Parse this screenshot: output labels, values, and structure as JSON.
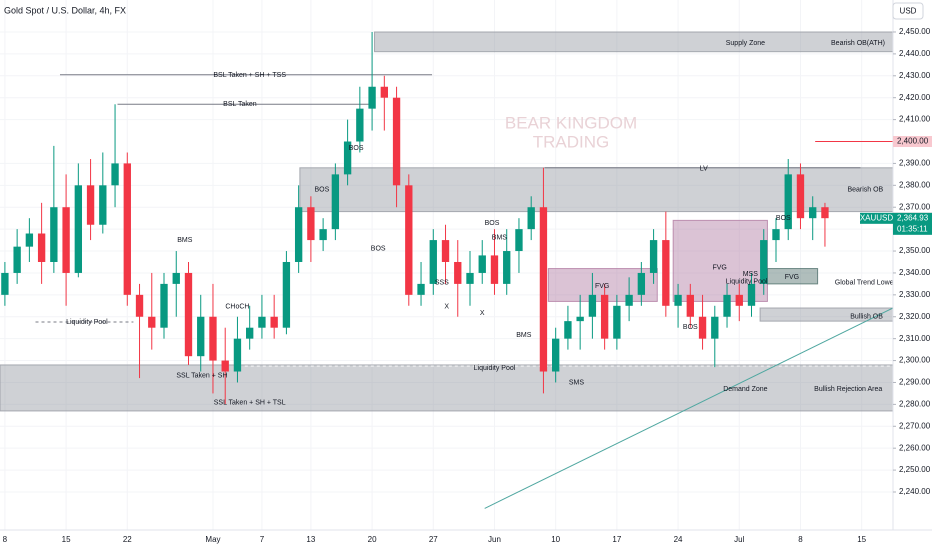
{
  "chart_data": {
    "type": "candlestick",
    "title": "Gold Spot / U.S. Dollar, 4h, FX",
    "currency": "USD",
    "watermark": [
      "BEAR KINGDOM",
      "TRADING"
    ],
    "up_color": "#089981",
    "down_color": "#f23645",
    "grid": true,
    "xlim": [
      -0.4,
      72.56
    ],
    "ylim": [
      2222.65,
      2464.6
    ],
    "xticks": [
      {
        "value": 0,
        "label": "8"
      },
      {
        "value": 5,
        "label": "15"
      },
      {
        "value": 10,
        "label": "22"
      },
      {
        "value": 17,
        "label": "May"
      },
      {
        "value": 21,
        "label": "7"
      },
      {
        "value": 25,
        "label": "13"
      },
      {
        "value": 30,
        "label": "20"
      },
      {
        "value": 35,
        "label": "27"
      },
      {
        "value": 40,
        "label": "Jun"
      },
      {
        "value": 45,
        "label": "10"
      },
      {
        "value": 50,
        "label": "17"
      },
      {
        "value": 55,
        "label": "24"
      },
      {
        "value": 60,
        "label": "Jul"
      },
      {
        "value": 65,
        "label": "8"
      },
      {
        "value": 70,
        "label": "15"
      }
    ],
    "yticks": [
      {
        "value": 2240,
        "label": "2,240.00"
      },
      {
        "value": 2250,
        "label": "2,250.00"
      },
      {
        "value": 2260,
        "label": "2,260.00"
      },
      {
        "value": 2270,
        "label": "2,270.00"
      },
      {
        "value": 2280,
        "label": "2,280.00"
      },
      {
        "value": 2290,
        "label": "2,290.00"
      },
      {
        "value": 2300,
        "label": "2,300.00"
      },
      {
        "value": 2310,
        "label": "2,310.00"
      },
      {
        "value": 2320,
        "label": "2,320.00"
      },
      {
        "value": 2330,
        "label": "2,330.00"
      },
      {
        "value": 2340,
        "label": "2,340.00"
      },
      {
        "value": 2350,
        "label": "2,350.00"
      },
      {
        "value": 2360,
        "label": "2,360.00"
      },
      {
        "value": 2370,
        "label": "2,370.00"
      },
      {
        "value": 2380,
        "label": "2,380.00"
      },
      {
        "value": 2390,
        "label": "2,390.00"
      },
      {
        "value": 2410,
        "label": "2,410.00"
      },
      {
        "value": 2420,
        "label": "2,420.00"
      },
      {
        "value": 2430,
        "label": "2,430.00"
      },
      {
        "value": 2440,
        "label": "2,440.00"
      },
      {
        "value": 2450,
        "label": "2,450.00"
      }
    ],
    "x": [
      0,
      1,
      2,
      3,
      4,
      5,
      6,
      7,
      8,
      9,
      10,
      11,
      12,
      13,
      14,
      15,
      16,
      17,
      18,
      19,
      20,
      21,
      22,
      23,
      24,
      25,
      26,
      27,
      28,
      29,
      30,
      31,
      32,
      33,
      34,
      35,
      36,
      37,
      38,
      39,
      40,
      41,
      42,
      43,
      44,
      45,
      46,
      47,
      48,
      49,
      50,
      51,
      52,
      53,
      54,
      55,
      56,
      57,
      58,
      59,
      60,
      61,
      62,
      63,
      64,
      65,
      66,
      67
    ],
    "open": [
      2330,
      2340,
      2352,
      2358,
      2345,
      2370,
      2340,
      2380,
      2362,
      2380,
      2390,
      2330,
      2320,
      2315,
      2335,
      2340,
      2302,
      2320,
      2300,
      2295,
      2310,
      2315,
      2320,
      2315,
      2345,
      2370,
      2355,
      2360,
      2385,
      2400,
      2415,
      2425,
      2420,
      2380,
      2330,
      2335,
      2355,
      2345,
      2335,
      2340,
      2348,
      2335,
      2350,
      2360,
      2370,
      2295,
      2310,
      2318,
      2320,
      2330,
      2310,
      2325,
      2330,
      2340,
      2355,
      2325,
      2330,
      2320,
      2310,
      2320,
      2330,
      2325,
      2335,
      2355,
      2360,
      2385,
      2365,
      2370
    ],
    "high": [
      2345,
      2360,
      2365,
      2372,
      2398,
      2385,
      2390,
      2392,
      2395,
      2417,
      2395,
      2335,
      2340,
      2340,
      2350,
      2345,
      2330,
      2335,
      2315,
      2320,
      2325,
      2330,
      2330,
      2350,
      2380,
      2375,
      2365,
      2390,
      2410,
      2425,
      2450,
      2430,
      2425,
      2385,
      2345,
      2360,
      2362,
      2355,
      2350,
      2355,
      2360,
      2360,
      2365,
      2375,
      2388,
      2315,
      2325,
      2330,
      2340,
      2335,
      2330,
      2338,
      2345,
      2360,
      2368,
      2335,
      2335,
      2330,
      2325,
      2335,
      2335,
      2340,
      2360,
      2365,
      2392,
      2390,
      2375,
      2372
    ],
    "low": [
      2325,
      2335,
      2345,
      2335,
      2340,
      2325,
      2338,
      2355,
      2358,
      2370,
      2325,
      2292,
      2305,
      2310,
      2320,
      2298,
      2295,
      2285,
      2280,
      2290,
      2305,
      2310,
      2310,
      2312,
      2340,
      2345,
      2350,
      2355,
      2380,
      2395,
      2405,
      2405,
      2370,
      2325,
      2325,
      2330,
      2335,
      2320,
      2325,
      2335,
      2330,
      2330,
      2340,
      2355,
      2285,
      2290,
      2305,
      2305,
      2310,
      2305,
      2305,
      2318,
      2325,
      2335,
      2320,
      2315,
      2315,
      2305,
      2297,
      2315,
      2318,
      2320,
      2330,
      2345,
      2355,
      2360,
      2355,
      2352
    ],
    "close": [
      2340,
      2352,
      2358,
      2345,
      2370,
      2340,
      2380,
      2362,
      2380,
      2390,
      2330,
      2320,
      2315,
      2335,
      2340,
      2302,
      2320,
      2300,
      2295,
      2310,
      2315,
      2320,
      2315,
      2345,
      2370,
      2355,
      2360,
      2385,
      2400,
      2415,
      2425,
      2420,
      2380,
      2330,
      2335,
      2355,
      2345,
      2335,
      2340,
      2348,
      2335,
      2350,
      2360,
      2370,
      2295,
      2310,
      2318,
      2320,
      2330,
      2310,
      2325,
      2330,
      2340,
      2355,
      2325,
      2330,
      2320,
      2310,
      2320,
      2330,
      2325,
      2335,
      2355,
      2360,
      2385,
      2365,
      2370,
      2365
    ],
    "zones": [
      {
        "top": 2450,
        "bottom": 2441,
        "x0": 30.2,
        "x1": 72.56,
        "color": "#9598a1"
      },
      {
        "top": 2388,
        "bottom": 2368,
        "x0": 24.1,
        "x1": 72.56,
        "color": "#9598a1"
      },
      {
        "top": 2298,
        "bottom": 2277,
        "x0": -0.4,
        "x1": 72.56,
        "color": "#9598a1"
      },
      {
        "top": 2342,
        "bottom": 2327,
        "x0": 44.4,
        "x1": 53.3,
        "color": "#b07aa1"
      },
      {
        "top": 2364,
        "bottom": 2327,
        "x0": 54.6,
        "x1": 62.3,
        "color": "#b07aa1"
      },
      {
        "top": 2342,
        "bottom": 2335,
        "x0": 62.3,
        "x1": 66.4,
        "color": "#4f6f6b"
      },
      {
        "top": 2324,
        "bottom": 2318,
        "x0": 61.7,
        "x1": 72.56,
        "color": "#9598a1"
      }
    ],
    "levels": [
      {
        "value": 2430.5,
        "x0": 4.5,
        "x1": 34.9,
        "color": "#787b86",
        "dashed": false
      },
      {
        "value": 2417,
        "x0": 9.2,
        "x1": 29.8,
        "color": "#787b86",
        "dashed": false
      },
      {
        "value": 2317.6,
        "x0": 2.5,
        "x1": 10.5,
        "color": "#787b86",
        "dashed": true
      },
      {
        "value": 2297.5,
        "x0": 19.6,
        "x1": 72.56,
        "color": "#ffffff",
        "dashed": true
      },
      {
        "value": 2388,
        "x0": 44.1,
        "x1": 69.9,
        "color": "#787b86",
        "dashed": false
      },
      {
        "value": 2400,
        "x0": 66.2,
        "x1": 72.56,
        "color": "#f23645",
        "dashed": false
      }
    ],
    "trend_line": {
      "x": [
        39.2,
        72.56
      ],
      "values": [
        2232.5,
        2324
      ],
      "color": "#4fa7a0"
    },
    "annotations": [
      {
        "text": "Supply Zone",
        "x": 60.5,
        "y": 2445
      },
      {
        "text": "Bearish OB(ATH)",
        "x": 69.7,
        "y": 2445
      },
      {
        "text": "BSL Taken + SH + TSS",
        "x": 20,
        "y": 2430.4
      },
      {
        "text": "BSL Taken",
        "x": 19.2,
        "y": 2417
      },
      {
        "text": "BOS",
        "x": 28.7,
        "y": 2397
      },
      {
        "text": "BMS",
        "x": 14.7,
        "y": 2355
      },
      {
        "text": "BOS",
        "x": 25.9,
        "y": 2378
      },
      {
        "text": "BOS",
        "x": 30.5,
        "y": 2351
      },
      {
        "text": "CHoCH",
        "x": 19,
        "y": 2324.5
      },
      {
        "text": "Liquidity Pool",
        "x": 6.7,
        "y": 2317.6
      },
      {
        "text": "SSL Taken + SH",
        "x": 16.1,
        "y": 2293
      },
      {
        "text": "SSL Taken + SH + TSL",
        "x": 20,
        "y": 2280.7
      },
      {
        "text": "BOS",
        "x": 39.8,
        "y": 2362.8
      },
      {
        "text": "BMS",
        "x": 40.4,
        "y": 2356
      },
      {
        "text": "SSS",
        "x": 35.7,
        "y": 2335.5
      },
      {
        "text": "X",
        "x": 36.1,
        "y": 2324.5
      },
      {
        "text": "X",
        "x": 39,
        "y": 2321.7
      },
      {
        "text": "BMS",
        "x": 42.4,
        "y": 2311.7
      },
      {
        "text": "LV",
        "x": 57.1,
        "y": 2387.5
      },
      {
        "text": "FVG",
        "x": 48.8,
        "y": 2334
      },
      {
        "text": "FVG",
        "x": 58.4,
        "y": 2342.3
      },
      {
        "text": "FVG",
        "x": 64.3,
        "y": 2338
      },
      {
        "text": "MSS",
        "x": 60.9,
        "y": 2339.5
      },
      {
        "text": "Liquidity Pool",
        "x": 60.6,
        "y": 2336
      },
      {
        "text": "Liquidity Pool",
        "x": 40,
        "y": 2296.6
      },
      {
        "text": "SMS",
        "x": 46.7,
        "y": 2290
      },
      {
        "text": "BOS",
        "x": 56,
        "y": 2315.3
      },
      {
        "text": "BOS",
        "x": 63.6,
        "y": 2365
      },
      {
        "text": "Bearish OB",
        "x": 70.3,
        "y": 2378
      },
      {
        "text": "Bullish OB",
        "x": 70.4,
        "y": 2320
      },
      {
        "text": "Demand Zone",
        "x": 60.5,
        "y": 2287
      },
      {
        "text": "Bullish Rejection Area",
        "x": 68.9,
        "y": 2287
      },
      {
        "text": "Global Trend Lower",
        "x": 70.3,
        "y": 2335.5
      }
    ],
    "price_tags": [
      {
        "value": 2400,
        "label": "2,400.00",
        "color": "#f8c8cf"
      },
      {
        "value": 2365,
        "label": "2,365.00",
        "color": "#f8c8cf"
      },
      {
        "value": 2364.93,
        "label": "2,364.93",
        "color": "#089981",
        "countdown": "01:35:11",
        "symbol": "XAUUSD"
      }
    ]
  }
}
